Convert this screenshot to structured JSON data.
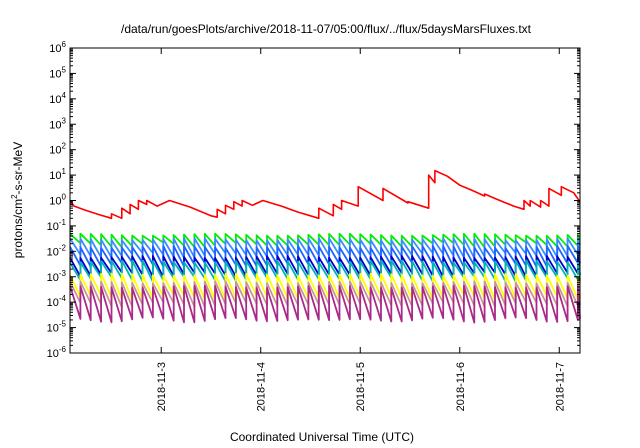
{
  "chart_data": {
    "type": "line",
    "title": "/data/run/goesPlots/archive/2018-11-07/05:00/flux/../flux/5daysMarsFluxes.txt",
    "xlabel": "Coordinated Universal Time (UTC)",
    "ylabel": {
      "prefix": "protons/cm",
      "sup": "2",
      "suffix": "-s-sr-MeV"
    },
    "yscale": "log",
    "ylim": [
      1e-06,
      1000000.0
    ],
    "xlim": [
      "2018-11-02 02:00",
      "2018-11-07 05:00"
    ],
    "yticks": [
      {
        "base": "10",
        "exp": "-6"
      },
      {
        "base": "10",
        "exp": "-5"
      },
      {
        "base": "10",
        "exp": "-4"
      },
      {
        "base": "10",
        "exp": "-3"
      },
      {
        "base": "10",
        "exp": "-2"
      },
      {
        "base": "10",
        "exp": "-1"
      },
      {
        "base": "10",
        "exp": "0"
      },
      {
        "base": "10",
        "exp": "1"
      },
      {
        "base": "10",
        "exp": "2"
      },
      {
        "base": "10",
        "exp": "3"
      },
      {
        "base": "10",
        "exp": "4"
      },
      {
        "base": "10",
        "exp": "5"
      },
      {
        "base": "10",
        "exp": "6"
      }
    ],
    "xticks": [
      {
        "label": "2018-11-3",
        "time": "2018-11-03 00:00"
      },
      {
        "label": "2018-11-4",
        "time": "2018-11-04 00:00"
      },
      {
        "label": "2018-11-5",
        "time": "2018-11-05 00:00"
      },
      {
        "label": "2018-11-6",
        "time": "2018-11-06 00:00"
      },
      {
        "label": "2018-11-7",
        "time": "2018-11-07 00:00"
      }
    ],
    "grid": false,
    "legend": "none",
    "series": [
      {
        "color": "#ff0000",
        "style": "sawtooth-step",
        "points": [
          [
            "2018-11-02 02:00",
            1.0
          ],
          [
            "2018-11-02 03:00",
            0.6
          ],
          [
            "2018-11-02 06:00",
            0.4
          ],
          [
            "2018-11-02 09:00",
            0.28
          ],
          [
            "2018-11-02 12:00",
            0.2
          ],
          [
            "2018-11-02 12:00",
            0.3
          ],
          [
            "2018-11-02 14:30",
            0.2
          ],
          [
            "2018-11-02 14:30",
            0.5
          ],
          [
            "2018-11-02 16:30",
            0.3
          ],
          [
            "2018-11-02 16:30",
            0.7
          ],
          [
            "2018-11-02 18:30",
            0.45
          ],
          [
            "2018-11-02 18:30",
            1.0
          ],
          [
            "2018-11-02 20:30",
            0.7
          ],
          [
            "2018-11-02 20:30",
            1.0
          ],
          [
            "2018-11-02 23:00",
            0.6
          ],
          [
            "2018-11-03 02:00",
            1.0
          ],
          [
            "2018-11-03 07:00",
            0.55
          ],
          [
            "2018-11-03 12:00",
            0.25
          ],
          [
            "2018-11-03 13:30",
            0.22
          ],
          [
            "2018-11-03 13:30",
            0.45
          ],
          [
            "2018-11-03 15:30",
            0.3
          ],
          [
            "2018-11-03 15:30",
            0.65
          ],
          [
            "2018-11-03 17:30",
            0.45
          ],
          [
            "2018-11-03 17:30",
            0.9
          ],
          [
            "2018-11-03 19:30",
            0.6
          ],
          [
            "2018-11-03 19:30",
            1.0
          ],
          [
            "2018-11-03 22:00",
            0.65
          ],
          [
            "2018-11-04 00:30",
            1.0
          ],
          [
            "2018-11-04 05:00",
            0.6
          ],
          [
            "2018-11-04 09:00",
            0.35
          ],
          [
            "2018-11-04 14:00",
            0.2
          ],
          [
            "2018-11-04 14:00",
            0.5
          ],
          [
            "2018-11-04 17:30",
            0.25
          ],
          [
            "2018-11-04 17:30",
            0.7
          ],
          [
            "2018-11-04 19:30",
            0.45
          ],
          [
            "2018-11-04 19:30",
            1.0
          ],
          [
            "2018-11-04 23:30",
            0.6
          ],
          [
            "2018-11-04 23:30",
            3.5
          ],
          [
            "2018-11-05 05:30",
            1.0
          ],
          [
            "2018-11-05 05:30",
            3.0
          ],
          [
            "2018-11-05 11:30",
            0.8
          ],
          [
            "2018-11-05 11:30",
            0.9
          ],
          [
            "2018-11-05 16:30",
            0.5
          ],
          [
            "2018-11-05 16:30",
            10
          ],
          [
            "2018-11-05 18:00",
            5.0
          ],
          [
            "2018-11-05 18:00",
            15
          ],
          [
            "2018-11-05 21:00",
            9
          ],
          [
            "2018-11-06 00:00",
            4.0
          ],
          [
            "2018-11-06 03:00",
            2.5
          ],
          [
            "2018-11-06 06:00",
            1.5
          ],
          [
            "2018-11-06 06:00",
            1.8
          ],
          [
            "2018-11-06 09:00",
            1.1
          ],
          [
            "2018-11-06 13:00",
            0.6
          ],
          [
            "2018-11-06 15:30",
            0.45
          ],
          [
            "2018-11-06 15:30",
            1.0
          ],
          [
            "2018-11-06 17:00",
            0.6
          ],
          [
            "2018-11-06 17:00",
            1.0
          ],
          [
            "2018-11-06 19:30",
            0.55
          ],
          [
            "2018-11-06 19:30",
            1.0
          ],
          [
            "2018-11-06 21:30",
            0.6
          ],
          [
            "2018-11-06 21:30",
            3.0
          ],
          [
            "2018-11-07 00:30",
            1.6
          ],
          [
            "2018-11-07 00:30",
            3.5
          ],
          [
            "2018-11-07 03:30",
            2.0
          ],
          [
            "2018-11-07 04:00",
            1.5
          ],
          [
            "2018-11-07 05:00",
            0.9
          ]
        ]
      },
      {
        "color": "#00ee00",
        "style": "sawtooth",
        "peak": 0.045,
        "trough": 0.018,
        "period_hours": 2.5
      },
      {
        "color": "#3c8cff",
        "style": "sawtooth",
        "peak": 0.03,
        "trough": 0.007,
        "period_hours": 2.5
      },
      {
        "color": "#1e64ff",
        "style": "sawtooth",
        "peak": 0.015,
        "trough": 0.003,
        "period_hours": 2.5
      },
      {
        "color": "#0000cc",
        "style": "sawtooth",
        "peak": 0.006,
        "trough": 0.0012,
        "period_hours": 2.5
      },
      {
        "color": "#00b4b4",
        "style": "sawtooth",
        "peak": 0.004,
        "trough": 0.0008,
        "period_hours": 2.5
      },
      {
        "color": "#ffff00",
        "style": "sawtooth",
        "peak": 0.0012,
        "trough": 0.00015,
        "period_hours": 2.5
      },
      {
        "color": "#c89696",
        "style": "sawtooth",
        "peak": 0.0006,
        "trough": 8e-05,
        "period_hours": 2.5
      },
      {
        "color": "#aa2a8a",
        "style": "sawtooth",
        "peak": 0.0004,
        "trough": 2e-05,
        "period_hours": 2.5
      }
    ]
  }
}
